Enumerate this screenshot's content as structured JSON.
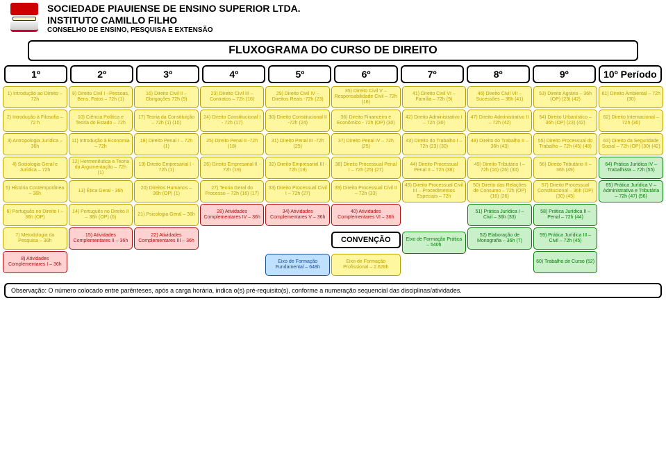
{
  "header": {
    "line1": "SOCIEDADE PIAUIENSE DE ENSINO SUPERIOR LTDA.",
    "line2": "INSTITUTO CAMILLO FILHO",
    "line3": "CONSELHO DE ENSINO, PESQUISA E EXTENSÃO"
  },
  "title": "FLUXOGRAMA DO CURSO DE DIREITO",
  "periods": [
    "1º",
    "2º",
    "3º",
    "4º",
    "5º",
    "6º",
    "7º",
    "8º",
    "9º",
    "10º Período"
  ],
  "colors": {
    "yellow_fill": "#fff7a0",
    "yellow_border": "#b8a100",
    "blue_fill": "#bfe0ff",
    "blue_border": "#1a4f90",
    "red_fill": "#ffd1d1",
    "red_border": "#b01010",
    "green_fill": "#c9f0c9",
    "green_border": "#0a7a0a",
    "white_fill": "#ffffff",
    "black_border": "#000000"
  },
  "columns": [
    [
      {
        "t": "1) Introdução ao Direito – 72h",
        "c": "yellow"
      },
      {
        "t": "2) Introdução à Filosofia – 72 h",
        "c": "yellow"
      },
      {
        "t": "3) Antropologia Jurídica – 36h",
        "c": "yellow"
      },
      {
        "t": "4) Sociologia Geral e Jurídica – 72h",
        "c": "yellow"
      },
      {
        "t": "5) História Contemporânea – 36h",
        "c": "yellow"
      },
      {
        "t": "6) Português no Direito I – 36h (OP)",
        "c": "yellow"
      },
      {
        "t": "7) Metodologia da Pesquisa – 36h",
        "c": "yellow"
      },
      {
        "t": "8) Atividades Complementares I – 36h",
        "c": "red"
      }
    ],
    [
      {
        "t": "9) Direito Civil I –Pessoas, Bens, Fatos – 72h (1)",
        "c": "yellow"
      },
      {
        "t": "10) Ciência Política e Teoria do Estado – 72h",
        "c": "yellow"
      },
      {
        "t": "11) Introdução à Economia – 72h",
        "c": "yellow"
      },
      {
        "t": "12) Hermenêutica e Teoria da Argumentação – 72h (1)",
        "c": "yellow"
      },
      {
        "t": "13) Ética Geral - 36h",
        "c": "yellow"
      },
      {
        "t": "14) Português no Direito II – 36h (OP) (6)",
        "c": "yellow"
      },
      {
        "t": "15) Atividades Complementares II – 36h",
        "c": "red"
      }
    ],
    [
      {
        "t": "16) Direito Civil II – Obrigações 72h (9)",
        "c": "yellow"
      },
      {
        "t": "17) Teoria da Constituição – 72h (1) (10)",
        "c": "yellow"
      },
      {
        "t": "18) Direito Penal I – 72h (1)",
        "c": "yellow"
      },
      {
        "t": "19) Direito Empresarial I - 72h (1)",
        "c": "yellow"
      },
      {
        "t": "20) Direitos Humanos – 36h (OP) (1)",
        "c": "yellow"
      },
      {
        "t": "21) Psicologia Geral – 36h",
        "c": "yellow"
      },
      {
        "t": "22) Atividades Complementares III – 36h",
        "c": "red"
      }
    ],
    [
      {
        "t": "23) Direito Civil III – Contratos – 72h (16)",
        "c": "yellow"
      },
      {
        "t": "24) Direito Constitucional I - 72h (17)",
        "c": "yellow"
      },
      {
        "t": "25) Direito Penal II -72h (18)",
        "c": "yellow"
      },
      {
        "t": "26) Direito Empresarial II - 72h (19)",
        "c": "yellow"
      },
      {
        "t": "27) Teoria Geral do Processo – 72h (16) (17)",
        "c": "yellow"
      },
      {
        "t": "28) Atividades Complementares IV – 36h",
        "c": "red"
      }
    ],
    [
      {
        "t": "29) Direito Civil IV – Direitos Reais -72h (23)",
        "c": "yellow"
      },
      {
        "t": "30) Direito Constitucional II -72h (24)",
        "c": "yellow"
      },
      {
        "t": "31) Direito Penal III -72h (25)",
        "c": "yellow"
      },
      {
        "t": "32) Direito Empresarial III - 72h (19)",
        "c": "yellow"
      },
      {
        "t": "33) Direito Processual Civil I – 72h (27)",
        "c": "yellow"
      },
      {
        "t": "34) Atividades Complementares V – 36h",
        "c": "red"
      },
      {
        "t": "Eixo de Formação Fundamental – 648h",
        "c": "blue",
        "conv": true
      }
    ],
    [
      {
        "t": "35) Direito Civil V – Responsabilidade Civil – 72h (16)",
        "c": "yellow"
      },
      {
        "t": "36) Direito Financeiro e Econômico - 72h (OP) (30)",
        "c": "yellow"
      },
      {
        "t": "37) Direito Penal IV – 72h (25)",
        "c": "yellow"
      },
      {
        "t": "38) Direito Processual Penal I – 72h (25) (27)",
        "c": "yellow"
      },
      {
        "t": "39) Direito Processual Civil II – 72h (33)",
        "c": "yellow"
      },
      {
        "t": "40) Atividades Complementares VI – 36h",
        "c": "red"
      },
      {
        "t": "Eixo de Formação Profissional – 2.628h",
        "c": "yellow",
        "conv": true
      }
    ],
    [
      {
        "t": "41) Direito Civil VI – Família – 72h (9)",
        "c": "yellow"
      },
      {
        "t": "42) Direito Administrativo I – 72h (30)",
        "c": "yellow"
      },
      {
        "t": "43) Direito do Trabalho I – 72h (23) (30)",
        "c": "yellow"
      },
      {
        "t": "44) Direito Processual Penal II – 72h (38)",
        "c": "yellow"
      },
      {
        "t": "45) Direito Processual Civil III – Procedimentos Especiais – 72h",
        "c": "yellow"
      },
      {
        "t": "Eixo de Formação Prática – 540h",
        "c": "green",
        "conv": true
      }
    ],
    [
      {
        "t": "46) Direito Civil VII – Sucessões – 36h (41)",
        "c": "yellow"
      },
      {
        "t": "47) Direito Administrativo II – 72h (42)",
        "c": "yellow"
      },
      {
        "t": "48) Direito do Trabalho II – 36h (43)",
        "c": "yellow"
      },
      {
        "t": "49) Direito Tributário I – 72h (16) (26) (30)",
        "c": "yellow"
      },
      {
        "t": "50) Direito das Relações de Consumo – 72h (OP) (16) (26)",
        "c": "yellow"
      },
      {
        "t": "51) Prática Jurídica I – Civil – 36h (33)",
        "c": "green"
      },
      {
        "t": "52) Elaboração de Monografia – 36h (7)",
        "c": "green"
      }
    ],
    [
      {
        "t": "53) Direito Agrário – 36h (OP) (23) (42)",
        "c": "yellow"
      },
      {
        "t": "54) Direito Urbanístico – 36h (OP) (23) (42)",
        "c": "yellow"
      },
      {
        "t": "55) Direito Processual do Trabalho – 72h (45) (48)",
        "c": "yellow"
      },
      {
        "t": "56) Direito Tributário II – 36h (49)",
        "c": "yellow"
      },
      {
        "t": "57) Direito Processual Constitucional – 36h (OP) (30) (45)",
        "c": "yellow"
      },
      {
        "t": "58) Prática Jurídica II – Penal – 72h (44)",
        "c": "green"
      },
      {
        "t": "59) Prática Jurídica III – Civil – 72h (45)",
        "c": "green"
      },
      {
        "t": "60) Trabalho de Curso (52)",
        "c": "green"
      }
    ],
    [
      {
        "t": "61) Direito Ambiental – 72h (30)",
        "c": "yellow"
      },
      {
        "t": "62) Direito Internacional – 72h (30)",
        "c": "yellow"
      },
      {
        "t": "63) Direito da Seguridade Social – 72h (OP) (30) (42)",
        "c": "yellow"
      },
      {
        "t": "64) Prática Jurídica IV – Trabalhista – 72h (55)",
        "c": "green"
      },
      {
        "t": "65) Prática Jurídica V – Administrativa e Tributária – 72h (47) (56)",
        "c": "green"
      }
    ]
  ],
  "convention_label": "CONVENÇÃO",
  "footnote": "Observação: O número colocado entre parênteses, após a carga horária, indica o(s) pré-requisito(s), conforme a numeração sequencial das disciplinas/atividades."
}
